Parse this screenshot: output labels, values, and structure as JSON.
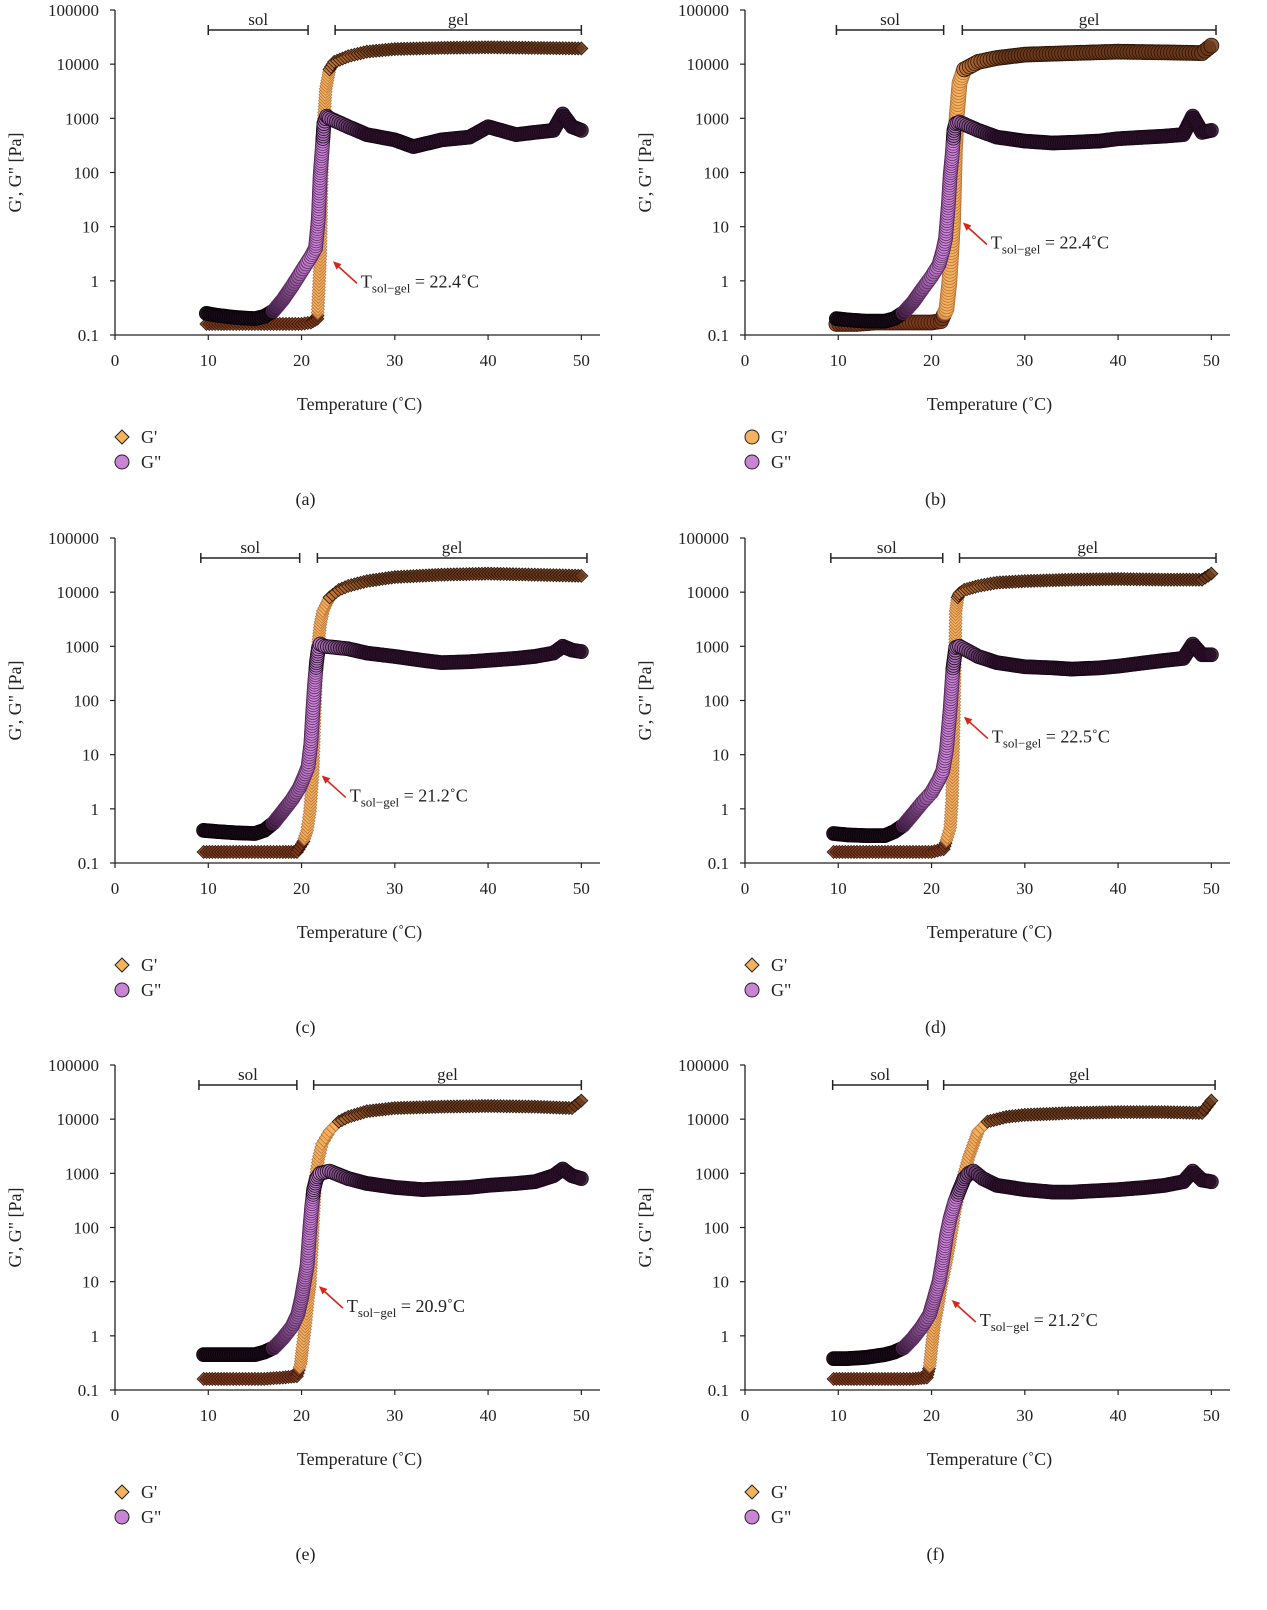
{
  "chart_data": [
    {
      "type": "scatter",
      "label": "(a)",
      "xlabel": "Temperature (˚C)",
      "ylabel": "G', G\" [Pa]",
      "xlim": [
        0,
        52
      ],
      "ylim": [
        0.1,
        100000
      ],
      "yscale": "log",
      "xticks": [
        "0",
        "10",
        "20",
        "30",
        "40",
        "50"
      ],
      "yticks": [
        "0.1",
        "1",
        "10",
        "100",
        "1000",
        "10000",
        "100000"
      ],
      "legend": [
        "G'",
        "G\""
      ],
      "legend_position": "bottom-left",
      "gp_marker": "diamond",
      "ranges": [
        {
          "label": "sol",
          "x1": 10,
          "x2": 20.7
        },
        {
          "label": "gel",
          "x1": 23.6,
          "x2": 50
        }
      ],
      "annotation": {
        "text": "T",
        "sub": "sol−gel",
        "rest": " = 22.4˚C",
        "x": 22.4,
        "y": 2.5
      },
      "series": [
        {
          "name": "G'",
          "x": [
            9.8,
            12,
            14,
            16,
            18,
            20,
            21,
            21.7,
            22,
            22.2,
            22.4,
            22.6,
            23,
            23.5,
            25,
            27,
            30,
            35,
            40,
            45,
            50
          ],
          "y": [
            0.16,
            0.16,
            0.16,
            0.16,
            0.16,
            0.16,
            0.17,
            0.2,
            2.5,
            150,
            1000,
            3500,
            8000,
            11000,
            14000,
            17000,
            19000,
            20000,
            20500,
            20000,
            19500
          ]
        },
        {
          "name": "G\"",
          "x": [
            9.8,
            11,
            13,
            15,
            16,
            17,
            18,
            19,
            20,
            21,
            21.5,
            21.8,
            22,
            22.2,
            22.4,
            22.7,
            23,
            25,
            27,
            30,
            32,
            35,
            38,
            40,
            43,
            45,
            47,
            48,
            49,
            50
          ],
          "y": [
            0.25,
            0.23,
            0.21,
            0.2,
            0.22,
            0.28,
            0.45,
            0.8,
            1.5,
            2.8,
            4,
            14,
            90,
            250,
            800,
            1100,
            1000,
            700,
            500,
            400,
            300,
            400,
            450,
            700,
            500,
            550,
            600,
            1200,
            700,
            600
          ]
        }
      ]
    },
    {
      "type": "scatter",
      "label": "(b)",
      "xlabel": "Temperature (˚C)",
      "ylabel": "G', G\" [Pa]",
      "xlim": [
        0,
        52
      ],
      "ylim": [
        0.1,
        100000
      ],
      "yscale": "log",
      "xticks": [
        "0",
        "10",
        "20",
        "30",
        "40",
        "50"
      ],
      "yticks": [
        "0.1",
        "1",
        "10",
        "100",
        "1000",
        "10000",
        "100000"
      ],
      "legend": [
        "G'",
        "G\""
      ],
      "legend_position": "bottom-left",
      "gp_marker": "circle",
      "ranges": [
        {
          "label": "sol",
          "x1": 9.8,
          "x2": 21.3
        },
        {
          "label": "gel",
          "x1": 23.3,
          "x2": 50.5
        }
      ],
      "annotation": {
        "text": "T",
        "sub": "sol−gel",
        "rest": " = 22.4˚C",
        "x": 22.4,
        "y": 13
      },
      "series": [
        {
          "name": "G'",
          "x": [
            9.8,
            12,
            14,
            16,
            18,
            20,
            21,
            21.6,
            21.9,
            22.1,
            22.3,
            22.4,
            22.5,
            22.7,
            23,
            23.5,
            25,
            27,
            30,
            35,
            40,
            45,
            49,
            50
          ],
          "y": [
            0.16,
            0.16,
            0.17,
            0.17,
            0.17,
            0.17,
            0.18,
            0.3,
            0.9,
            3,
            12,
            50,
            250,
            1100,
            4500,
            8000,
            11000,
            13000,
            15000,
            16000,
            17000,
            16500,
            16000,
            22000
          ]
        },
        {
          "name": "G\"",
          "x": [
            9.8,
            11,
            13,
            15,
            16,
            17,
            18,
            19,
            20,
            20.8,
            21.2,
            21.5,
            21.8,
            22,
            22.2,
            22.4,
            22.6,
            23,
            25,
            27,
            30,
            33,
            35,
            38,
            40,
            43,
            45,
            47,
            48,
            49,
            50
          ],
          "y": [
            0.2,
            0.19,
            0.18,
            0.18,
            0.2,
            0.26,
            0.4,
            0.7,
            1.2,
            2,
            3.5,
            6,
            25,
            90,
            200,
            600,
            800,
            850,
            600,
            450,
            380,
            350,
            360,
            380,
            420,
            450,
            470,
            500,
            1100,
            550,
            600
          ]
        }
      ]
    },
    {
      "type": "scatter",
      "label": "(c)",
      "xlabel": "Temperature (˚C)",
      "ylabel": "G', G\" [Pa]",
      "xlim": [
        0,
        52
      ],
      "ylim": [
        0.1,
        100000
      ],
      "yscale": "log",
      "xticks": [
        "0",
        "10",
        "20",
        "30",
        "40",
        "50"
      ],
      "yticks": [
        "0.1",
        "1",
        "10",
        "100",
        "1000",
        "10000",
        "100000"
      ],
      "legend": [
        "G'",
        "G\""
      ],
      "legend_position": "bottom-left",
      "gp_marker": "diamond",
      "ranges": [
        {
          "label": "sol",
          "x1": 9.2,
          "x2": 19.8
        },
        {
          "label": "gel",
          "x1": 21.7,
          "x2": 50.6
        }
      ],
      "annotation": {
        "text": "T",
        "sub": "sol−gel",
        "rest": " = 21.2˚C",
        "x": 21.2,
        "y": 4.5
      },
      "series": [
        {
          "name": "G'",
          "x": [
            9.5,
            12,
            14,
            16,
            18,
            19.5,
            20.2,
            20.6,
            20.9,
            21.2,
            21.4,
            21.6,
            21.8,
            22,
            22.3,
            23,
            24,
            25,
            27,
            30,
            35,
            40,
            45,
            50
          ],
          "y": [
            0.16,
            0.16,
            0.16,
            0.16,
            0.16,
            0.16,
            0.25,
            0.4,
            0.9,
            4.5,
            50,
            500,
            1200,
            2500,
            4500,
            8000,
            11000,
            13000,
            16000,
            19000,
            21000,
            22000,
            21000,
            20000
          ]
        },
        {
          "name": "G\"",
          "x": [
            9.5,
            11,
            13,
            15,
            16,
            17,
            18,
            19,
            19.8,
            20.3,
            20.7,
            21,
            21.2,
            21.4,
            21.6,
            21.8,
            22,
            22.5,
            25,
            27,
            30,
            33,
            35,
            38,
            40,
            43,
            45,
            47,
            48,
            49,
            50
          ],
          "y": [
            0.4,
            0.38,
            0.36,
            0.35,
            0.4,
            0.55,
            0.9,
            1.5,
            2.5,
            4,
            6,
            16,
            60,
            200,
            500,
            900,
            1100,
            1000,
            900,
            750,
            650,
            550,
            500,
            520,
            550,
            600,
            650,
            750,
            1000,
            850,
            800
          ]
        }
      ]
    },
    {
      "type": "scatter",
      "label": "(d)",
      "xlabel": "Temperature (˚C)",
      "ylabel": "G', G\" [Pa]",
      "xlim": [
        0,
        52
      ],
      "ylim": [
        0.1,
        100000
      ],
      "yscale": "log",
      "xticks": [
        "0",
        "10",
        "20",
        "30",
        "40",
        "50"
      ],
      "yticks": [
        "0.1",
        "1",
        "10",
        "100",
        "1000",
        "10000",
        "100000"
      ],
      "legend": [
        "G'",
        "G\""
      ],
      "legend_position": "bottom-left",
      "gp_marker": "diamond",
      "ranges": [
        {
          "label": "sol",
          "x1": 9.2,
          "x2": 21.2
        },
        {
          "label": "gel",
          "x1": 23,
          "x2": 50.5
        }
      ],
      "annotation": {
        "text": "T",
        "sub": "sol−gel",
        "rest": " = 22.5˚C",
        "x": 22.5,
        "y": 55
      },
      "series": [
        {
          "name": "G'",
          "x": [
            9.5,
            12,
            14,
            16,
            18,
            20,
            21.3,
            21.7,
            22,
            22.2,
            22.4,
            22.6,
            22.8,
            23,
            23.5,
            25,
            27,
            30,
            35,
            40,
            45,
            49,
            50
          ],
          "y": [
            0.16,
            0.16,
            0.16,
            0.16,
            0.16,
            0.16,
            0.18,
            0.3,
            0.45,
            1.5,
            55,
            4500,
            8000,
            9500,
            11000,
            13000,
            15000,
            16000,
            17000,
            17500,
            17000,
            17000,
            22000
          ]
        },
        {
          "name": "G\"",
          "x": [
            9.5,
            11,
            13,
            15,
            16,
            17,
            18,
            19,
            20,
            20.8,
            21.2,
            21.6,
            22,
            22.3,
            22.6,
            23,
            25,
            27,
            30,
            33,
            35,
            38,
            40,
            43,
            45,
            47,
            48,
            49,
            50
          ],
          "y": [
            0.35,
            0.33,
            0.32,
            0.32,
            0.38,
            0.5,
            0.8,
            1.3,
            2,
            3.5,
            5,
            12,
            70,
            400,
            950,
            1000,
            650,
            500,
            420,
            400,
            380,
            400,
            430,
            500,
            550,
            600,
            1100,
            700,
            700
          ]
        }
      ]
    },
    {
      "type": "scatter",
      "label": "(e)",
      "xlabel": "Temperature (˚C)",
      "ylabel": "G', G\" [Pa]",
      "xlim": [
        0,
        52
      ],
      "ylim": [
        0.1,
        100000
      ],
      "yscale": "log",
      "xticks": [
        "0",
        "10",
        "20",
        "30",
        "40",
        "50"
      ],
      "yticks": [
        "0.1",
        "1",
        "10",
        "100",
        "1000",
        "10000",
        "100000"
      ],
      "legend": [
        "G'",
        "G\""
      ],
      "legend_position": "bottom-left",
      "gp_marker": "diamond",
      "ranges": [
        {
          "label": "sol",
          "x1": 9,
          "x2": 19.5
        },
        {
          "label": "gel",
          "x1": 21.3,
          "x2": 50
        }
      ],
      "annotation": {
        "text": "T",
        "sub": "sol−gel",
        "rest": " = 20.9˚C",
        "x": 20.9,
        "y": 9
      },
      "series": [
        {
          "name": "G'",
          "x": [
            9.5,
            12,
            14,
            16,
            18,
            19.5,
            19.9,
            20.1,
            20.4,
            20.7,
            20.9,
            21.1,
            21.3,
            21.5,
            21.8,
            22.2,
            23,
            24,
            25,
            27,
            30,
            35,
            40,
            45,
            49,
            50
          ],
          "y": [
            0.16,
            0.16,
            0.16,
            0.16,
            0.17,
            0.18,
            0.3,
            0.6,
            1.5,
            5,
            9,
            40,
            200,
            800,
            1800,
            3500,
            6000,
            9000,
            11000,
            14000,
            16000,
            17000,
            17500,
            17000,
            16000,
            22000
          ]
        },
        {
          "name": "G\"",
          "x": [
            9.5,
            11,
            13,
            15,
            16,
            17,
            18,
            19,
            19.6,
            20,
            20.3,
            20.6,
            20.9,
            21.1,
            21.3,
            21.6,
            22,
            23,
            25,
            27,
            30,
            33,
            35,
            38,
            40,
            43,
            45,
            47,
            48,
            49,
            50
          ],
          "y": [
            0.45,
            0.45,
            0.45,
            0.45,
            0.5,
            0.6,
            0.9,
            1.5,
            2.5,
            5,
            10,
            20,
            100,
            250,
            500,
            800,
            1000,
            1100,
            800,
            650,
            550,
            500,
            520,
            550,
            600,
            650,
            700,
            900,
            1200,
            900,
            800
          ]
        }
      ]
    },
    {
      "type": "scatter",
      "label": "(f)",
      "xlabel": "Temperature (˚C)",
      "ylabel": "G', G\" [Pa]",
      "xlim": [
        0,
        52
      ],
      "ylim": [
        0.1,
        100000
      ],
      "yscale": "log",
      "xticks": [
        "0",
        "10",
        "20",
        "30",
        "40",
        "50"
      ],
      "yticks": [
        "0.1",
        "1",
        "10",
        "100",
        "1000",
        "10000",
        "100000"
      ],
      "legend": [
        "G'",
        "G\""
      ],
      "legend_position": "bottom-left",
      "gp_marker": "diamond",
      "ranges": [
        {
          "label": "sol",
          "x1": 9.4,
          "x2": 19.6
        },
        {
          "label": "gel",
          "x1": 21.3,
          "x2": 50.4
        }
      ],
      "annotation": {
        "text": "T",
        "sub": "sol−gel",
        "rest": " = 21.2˚C",
        "x": 21.2,
        "y": 5
      },
      "series": [
        {
          "name": "G'",
          "x": [
            9.5,
            12,
            14,
            16,
            18,
            19.5,
            19.8,
            20,
            20.3,
            20.6,
            21,
            21.5,
            22,
            22.5,
            23,
            24,
            25,
            26,
            28,
            30,
            35,
            40,
            45,
            49,
            50
          ],
          "y": [
            0.16,
            0.16,
            0.16,
            0.16,
            0.16,
            0.17,
            0.28,
            0.6,
            1.6,
            3,
            8,
            20,
            60,
            200,
            500,
            2000,
            6000,
            9000,
            11000,
            12000,
            13000,
            13500,
            13500,
            13000,
            22000
          ]
        },
        {
          "name": "G\"",
          "x": [
            9.5,
            11,
            13,
            15,
            16,
            17,
            18,
            19,
            19.8,
            20.3,
            20.8,
            21.2,
            21.6,
            22,
            22.5,
            23,
            23.5,
            24,
            24.5,
            25.5,
            27,
            30,
            33,
            35,
            38,
            40,
            43,
            45,
            47,
            48,
            49,
            50
          ],
          "y": [
            0.38,
            0.38,
            0.4,
            0.45,
            0.5,
            0.6,
            0.9,
            1.5,
            2.5,
            5,
            10,
            25,
            70,
            150,
            300,
            500,
            800,
            1000,
            1100,
            800,
            600,
            500,
            450,
            450,
            480,
            500,
            550,
            600,
            700,
            1100,
            750,
            700
          ]
        }
      ]
    }
  ]
}
